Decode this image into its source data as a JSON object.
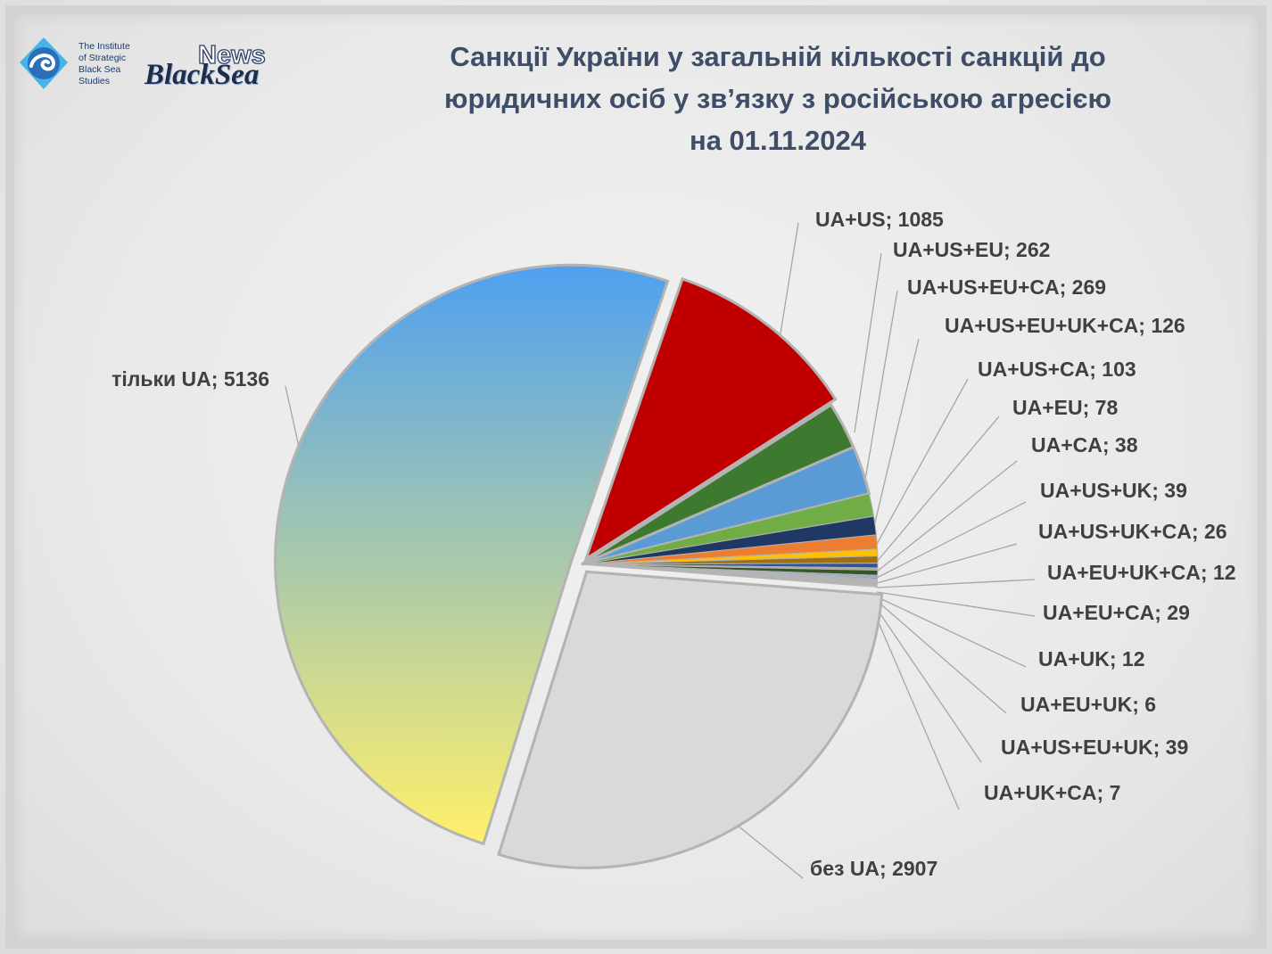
{
  "header": {
    "title_lines": [
      "Санкції України у загальній кількості санкцій до",
      "юридичних осіб у зв’язку з російською агресією",
      "на 01.11.2024"
    ]
  },
  "logos": {
    "isbs": {
      "text_lines": [
        "The Institute",
        "of Strategic",
        "Black Sea",
        "Studies"
      ],
      "icon": "wave-circle-icon",
      "color": "#2a6fb8"
    },
    "news": {
      "top": "News",
      "bottom": "BlackSea"
    }
  },
  "chart_data": {
    "type": "pie",
    "title": "Санкції України у загальній кількості санкцій до юридичних осіб у зв’язку з російською агресією на 01.11.2024",
    "label_format": "name; value",
    "slices": [
      {
        "name": "UA+US",
        "value": 1085,
        "color": "#c00000",
        "label": "UA+US; 1085"
      },
      {
        "name": "UA+US+EU",
        "value": 262,
        "color": "#3d7a2f",
        "label": "UA+US+EU; 262"
      },
      {
        "name": "UA+US+EU+CA",
        "value": 269,
        "color": "#5b9bd5",
        "label": "UA+US+EU+CA; 269"
      },
      {
        "name": "UA+US+EU+UK+CA",
        "value": 126,
        "color": "#70ad47",
        "label": "UA+US+EU+UK+CA; 126"
      },
      {
        "name": "UA+US+CA",
        "value": 103,
        "color": "#203864",
        "label": "UA+US+CA; 103"
      },
      {
        "name": "UA+EU",
        "value": 78,
        "color": "#ed7d31",
        "label": "UA+EU; 78"
      },
      {
        "name": "UA+CA",
        "value": 38,
        "color": "#ffc000",
        "label": "UA+CA; 38"
      },
      {
        "name": "UA+US+UK",
        "value": 39,
        "color": "#9e6e12",
        "label": "UA+US+UK; 39"
      },
      {
        "name": "UA+US+UK+CA",
        "value": 26,
        "color": "#2e5597",
        "label": "UA+US+UK+CA; 26"
      },
      {
        "name": "UA+EU+UK+CA",
        "value": 12,
        "color": "#a5a5a5",
        "label": "UA+EU+UK+CA; 12"
      },
      {
        "name": "UA+EU+CA",
        "value": 29,
        "color": "#375623",
        "label": "UA+EU+CA; 29"
      },
      {
        "name": "UA+UK",
        "value": 12,
        "color": "#8faadc",
        "label": "UA+UK; 12"
      },
      {
        "name": "UA+EU+UK",
        "value": 6,
        "color": "#1f3864",
        "label": "UA+EU+UK; 6"
      },
      {
        "name": "UA+US+EU+UK",
        "value": 39,
        "color": "#b4b4b4",
        "label": "UA+US+EU+UK; 39"
      },
      {
        "name": "UA+UK+CA",
        "value": 7,
        "color": "#c9c9c9",
        "label": "UA+UK+CA; 7"
      },
      {
        "name": "без UA",
        "value": 2907,
        "color": "#d9d9d9",
        "label": "без UA; 2907"
      },
      {
        "name": "тільки UA",
        "value": 5136,
        "gradient": [
          "#4fa0f0",
          "#fff06a"
        ],
        "label": "тільки UA; 5136"
      }
    ],
    "legend": "none",
    "leader_line_color": "#a6a6a6"
  }
}
